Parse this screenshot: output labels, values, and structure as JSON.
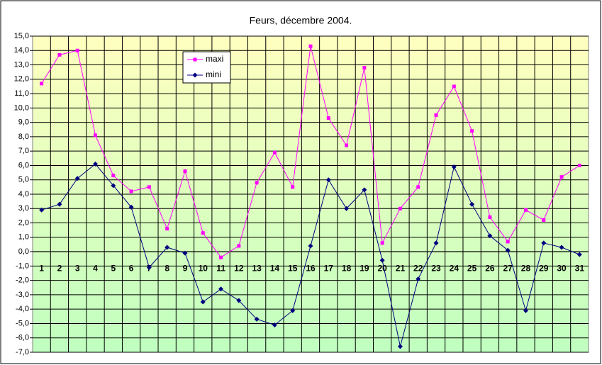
{
  "chart_data": {
    "type": "line",
    "title": "Feurs, décembre 2004.",
    "categories": [
      "1",
      "2",
      "3",
      "4",
      "5",
      "6",
      "7",
      "8",
      "9",
      "10",
      "11",
      "12",
      "13",
      "14",
      "15",
      "16",
      "17",
      "18",
      "19",
      "20",
      "21",
      "22",
      "23",
      "24",
      "25",
      "26",
      "27",
      "28",
      "29",
      "30",
      "31"
    ],
    "series": [
      {
        "name": "maxi",
        "color": "#ff00ff",
        "marker": "square",
        "values": [
          11.7,
          13.7,
          14.0,
          8.1,
          5.3,
          4.2,
          4.5,
          1.6,
          5.6,
          1.3,
          -0.4,
          0.4,
          4.8,
          6.9,
          4.5,
          14.3,
          9.3,
          7.4,
          12.8,
          0.6,
          3.0,
          4.5,
          9.5,
          11.5,
          8.4,
          2.4,
          0.7,
          2.9,
          2.2,
          5.2,
          6.0
        ]
      },
      {
        "name": "mini",
        "color": "#000080",
        "marker": "diamond",
        "values": [
          2.9,
          3.3,
          5.1,
          6.1,
          4.6,
          3.1,
          -1.1,
          0.3,
          -0.1,
          -3.5,
          -2.6,
          -3.4,
          -4.7,
          -5.1,
          -4.1,
          0.4,
          5.0,
          3.0,
          4.3,
          -0.6,
          -6.6,
          -1.9,
          0.6,
          5.9,
          3.3,
          1.1,
          0.1,
          -4.1,
          0.6,
          0.3,
          -0.2
        ]
      }
    ],
    "ylim": [
      -7,
      15
    ],
    "yticks": [
      {
        "value": -7,
        "label": "-7,0"
      },
      {
        "value": -6,
        "label": "-6,0"
      },
      {
        "value": -5,
        "label": "-5,0"
      },
      {
        "value": -4,
        "label": "-4,0"
      },
      {
        "value": -3,
        "label": "-3,0"
      },
      {
        "value": -2,
        "label": "-2,0"
      },
      {
        "value": -1,
        "label": "-1,0"
      },
      {
        "value": 0,
        "label": "0,0"
      },
      {
        "value": 1,
        "label": "1,0"
      },
      {
        "value": 2,
        "label": "2,0"
      },
      {
        "value": 3,
        "label": "3,0"
      },
      {
        "value": 4,
        "label": "4,0"
      },
      {
        "value": 5,
        "label": "5,0"
      },
      {
        "value": 6,
        "label": "6,0"
      },
      {
        "value": 7,
        "label": "7,0"
      },
      {
        "value": 8,
        "label": "8,0"
      },
      {
        "value": 9,
        "label": "9,0"
      },
      {
        "value": 10,
        "label": "10,0"
      },
      {
        "value": 11,
        "label": "11,0"
      },
      {
        "value": 12,
        "label": "12,0"
      },
      {
        "value": 13,
        "label": "13,0"
      },
      {
        "value": 14,
        "label": "14,0"
      },
      {
        "value": 15,
        "label": "15,0"
      }
    ],
    "grid": true
  }
}
